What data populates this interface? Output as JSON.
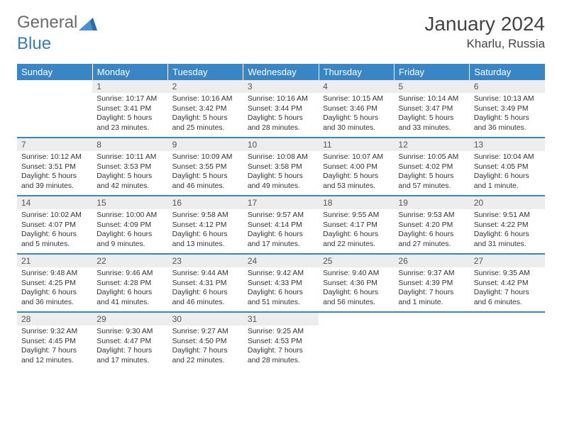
{
  "brand": {
    "word1": "General",
    "word2": "Blue"
  },
  "title": "January 2024",
  "location": "Kharlu, Russia",
  "colors": {
    "header_bg": "#3a86c4",
    "header_text": "#ffffff",
    "rule": "#3a86c4",
    "daynum_bg": "#ededed",
    "text": "#333333",
    "logo_gray": "#6b6b6b",
    "logo_blue": "#3a7ab8"
  },
  "dayHeaders": [
    "Sunday",
    "Monday",
    "Tuesday",
    "Wednesday",
    "Thursday",
    "Friday",
    "Saturday"
  ],
  "weeks": [
    [
      null,
      {
        "n": "1",
        "sr": "Sunrise: 10:17 AM",
        "ss": "Sunset: 3:41 PM",
        "dl": "Daylight: 5 hours and 23 minutes."
      },
      {
        "n": "2",
        "sr": "Sunrise: 10:16 AM",
        "ss": "Sunset: 3:42 PM",
        "dl": "Daylight: 5 hours and 25 minutes."
      },
      {
        "n": "3",
        "sr": "Sunrise: 10:16 AM",
        "ss": "Sunset: 3:44 PM",
        "dl": "Daylight: 5 hours and 28 minutes."
      },
      {
        "n": "4",
        "sr": "Sunrise: 10:15 AM",
        "ss": "Sunset: 3:46 PM",
        "dl": "Daylight: 5 hours and 30 minutes."
      },
      {
        "n": "5",
        "sr": "Sunrise: 10:14 AM",
        "ss": "Sunset: 3:47 PM",
        "dl": "Daylight: 5 hours and 33 minutes."
      },
      {
        "n": "6",
        "sr": "Sunrise: 10:13 AM",
        "ss": "Sunset: 3:49 PM",
        "dl": "Daylight: 5 hours and 36 minutes."
      }
    ],
    [
      {
        "n": "7",
        "sr": "Sunrise: 10:12 AM",
        "ss": "Sunset: 3:51 PM",
        "dl": "Daylight: 5 hours and 39 minutes."
      },
      {
        "n": "8",
        "sr": "Sunrise: 10:11 AM",
        "ss": "Sunset: 3:53 PM",
        "dl": "Daylight: 5 hours and 42 minutes."
      },
      {
        "n": "9",
        "sr": "Sunrise: 10:09 AM",
        "ss": "Sunset: 3:55 PM",
        "dl": "Daylight: 5 hours and 46 minutes."
      },
      {
        "n": "10",
        "sr": "Sunrise: 10:08 AM",
        "ss": "Sunset: 3:58 PM",
        "dl": "Daylight: 5 hours and 49 minutes."
      },
      {
        "n": "11",
        "sr": "Sunrise: 10:07 AM",
        "ss": "Sunset: 4:00 PM",
        "dl": "Daylight: 5 hours and 53 minutes."
      },
      {
        "n": "12",
        "sr": "Sunrise: 10:05 AM",
        "ss": "Sunset: 4:02 PM",
        "dl": "Daylight: 5 hours and 57 minutes."
      },
      {
        "n": "13",
        "sr": "Sunrise: 10:04 AM",
        "ss": "Sunset: 4:05 PM",
        "dl": "Daylight: 6 hours and 1 minute."
      }
    ],
    [
      {
        "n": "14",
        "sr": "Sunrise: 10:02 AM",
        "ss": "Sunset: 4:07 PM",
        "dl": "Daylight: 6 hours and 5 minutes."
      },
      {
        "n": "15",
        "sr": "Sunrise: 10:00 AM",
        "ss": "Sunset: 4:09 PM",
        "dl": "Daylight: 6 hours and 9 minutes."
      },
      {
        "n": "16",
        "sr": "Sunrise: 9:58 AM",
        "ss": "Sunset: 4:12 PM",
        "dl": "Daylight: 6 hours and 13 minutes."
      },
      {
        "n": "17",
        "sr": "Sunrise: 9:57 AM",
        "ss": "Sunset: 4:14 PM",
        "dl": "Daylight: 6 hours and 17 minutes."
      },
      {
        "n": "18",
        "sr": "Sunrise: 9:55 AM",
        "ss": "Sunset: 4:17 PM",
        "dl": "Daylight: 6 hours and 22 minutes."
      },
      {
        "n": "19",
        "sr": "Sunrise: 9:53 AM",
        "ss": "Sunset: 4:20 PM",
        "dl": "Daylight: 6 hours and 27 minutes."
      },
      {
        "n": "20",
        "sr": "Sunrise: 9:51 AM",
        "ss": "Sunset: 4:22 PM",
        "dl": "Daylight: 6 hours and 31 minutes."
      }
    ],
    [
      {
        "n": "21",
        "sr": "Sunrise: 9:48 AM",
        "ss": "Sunset: 4:25 PM",
        "dl": "Daylight: 6 hours and 36 minutes."
      },
      {
        "n": "22",
        "sr": "Sunrise: 9:46 AM",
        "ss": "Sunset: 4:28 PM",
        "dl": "Daylight: 6 hours and 41 minutes."
      },
      {
        "n": "23",
        "sr": "Sunrise: 9:44 AM",
        "ss": "Sunset: 4:31 PM",
        "dl": "Daylight: 6 hours and 46 minutes."
      },
      {
        "n": "24",
        "sr": "Sunrise: 9:42 AM",
        "ss": "Sunset: 4:33 PM",
        "dl": "Daylight: 6 hours and 51 minutes."
      },
      {
        "n": "25",
        "sr": "Sunrise: 9:40 AM",
        "ss": "Sunset: 4:36 PM",
        "dl": "Daylight: 6 hours and 56 minutes."
      },
      {
        "n": "26",
        "sr": "Sunrise: 9:37 AM",
        "ss": "Sunset: 4:39 PM",
        "dl": "Daylight: 7 hours and 1 minute."
      },
      {
        "n": "27",
        "sr": "Sunrise: 9:35 AM",
        "ss": "Sunset: 4:42 PM",
        "dl": "Daylight: 7 hours and 6 minutes."
      }
    ],
    [
      {
        "n": "28",
        "sr": "Sunrise: 9:32 AM",
        "ss": "Sunset: 4:45 PM",
        "dl": "Daylight: 7 hours and 12 minutes."
      },
      {
        "n": "29",
        "sr": "Sunrise: 9:30 AM",
        "ss": "Sunset: 4:47 PM",
        "dl": "Daylight: 7 hours and 17 minutes."
      },
      {
        "n": "30",
        "sr": "Sunrise: 9:27 AM",
        "ss": "Sunset: 4:50 PM",
        "dl": "Daylight: 7 hours and 22 minutes."
      },
      {
        "n": "31",
        "sr": "Sunrise: 9:25 AM",
        "ss": "Sunset: 4:53 PM",
        "dl": "Daylight: 7 hours and 28 minutes."
      },
      null,
      null,
      null
    ]
  ]
}
